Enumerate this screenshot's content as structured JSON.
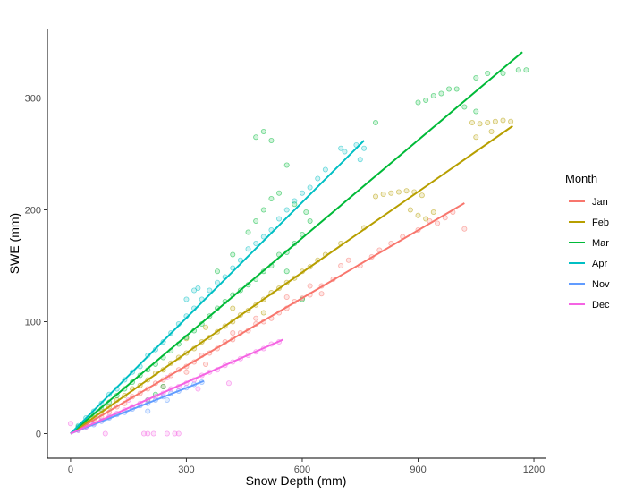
{
  "chart_data": {
    "type": "scatter",
    "xlabel": "Snow Depth (mm)",
    "ylabel": "SWE (mm)",
    "xlim": [
      -60,
      1230
    ],
    "ylim": [
      -22,
      362
    ],
    "x_ticks": [
      0,
      300,
      600,
      900,
      1200
    ],
    "y_ticks": [
      0,
      100,
      200,
      300
    ],
    "grid": false,
    "legend": {
      "title": "Month",
      "position": "right"
    },
    "series": [
      {
        "name": "Jan",
        "color": "#F8766D",
        "fit": [
          [
            0,
            0
          ],
          [
            1020,
            206
          ]
        ],
        "points": [
          [
            20,
            4
          ],
          [
            40,
            8
          ],
          [
            60,
            12
          ],
          [
            80,
            15
          ],
          [
            100,
            19
          ],
          [
            120,
            24
          ],
          [
            140,
            27
          ],
          [
            160,
            33
          ],
          [
            180,
            36
          ],
          [
            200,
            40
          ],
          [
            220,
            45
          ],
          [
            240,
            48
          ],
          [
            260,
            52
          ],
          [
            280,
            57
          ],
          [
            300,
            60
          ],
          [
            320,
            64
          ],
          [
            340,
            70
          ],
          [
            360,
            72
          ],
          [
            380,
            76
          ],
          [
            400,
            82
          ],
          [
            420,
            84
          ],
          [
            440,
            90
          ],
          [
            460,
            92
          ],
          [
            480,
            98
          ],
          [
            500,
            100
          ],
          [
            520,
            103
          ],
          [
            540,
            108
          ],
          [
            560,
            112
          ],
          [
            580,
            118
          ],
          [
            600,
            121
          ],
          [
            620,
            124
          ],
          [
            650,
            132
          ],
          [
            680,
            138
          ],
          [
            700,
            150
          ],
          [
            720,
            155
          ],
          [
            750,
            150
          ],
          [
            780,
            158
          ],
          [
            800,
            164
          ],
          [
            830,
            170
          ],
          [
            860,
            176
          ],
          [
            900,
            182
          ],
          [
            930,
            190
          ],
          [
            950,
            188
          ],
          [
            970,
            193
          ],
          [
            990,
            198
          ],
          [
            1020,
            183
          ],
          [
            240,
            42
          ],
          [
            300,
            55
          ],
          [
            350,
            62
          ],
          [
            420,
            90
          ],
          [
            480,
            103
          ],
          [
            560,
            122
          ],
          [
            620,
            132
          ],
          [
            650,
            125
          ]
        ]
      },
      {
        "name": "Feb",
        "color": "#B79F00",
        "fit": [
          [
            0,
            0
          ],
          [
            1145,
            275
          ]
        ],
        "points": [
          [
            20,
            5
          ],
          [
            40,
            10
          ],
          [
            60,
            14
          ],
          [
            80,
            20
          ],
          [
            100,
            24
          ],
          [
            120,
            30
          ],
          [
            140,
            34
          ],
          [
            160,
            40
          ],
          [
            180,
            43
          ],
          [
            200,
            48
          ],
          [
            220,
            54
          ],
          [
            240,
            57
          ],
          [
            260,
            63
          ],
          [
            280,
            68
          ],
          [
            300,
            72
          ],
          [
            320,
            76
          ],
          [
            340,
            82
          ],
          [
            360,
            86
          ],
          [
            380,
            91
          ],
          [
            400,
            96
          ],
          [
            420,
            100
          ],
          [
            440,
            106
          ],
          [
            460,
            110
          ],
          [
            480,
            115
          ],
          [
            500,
            120
          ],
          [
            520,
            126
          ],
          [
            540,
            130
          ],
          [
            560,
            135
          ],
          [
            580,
            139
          ],
          [
            600,
            145
          ],
          [
            620,
            149
          ],
          [
            640,
            155
          ],
          [
            660,
            160
          ],
          [
            700,
            170
          ],
          [
            760,
            184
          ],
          [
            790,
            212
          ],
          [
            810,
            214
          ],
          [
            830,
            215
          ],
          [
            850,
            216
          ],
          [
            870,
            217
          ],
          [
            890,
            216
          ],
          [
            910,
            213
          ],
          [
            880,
            200
          ],
          [
            900,
            195
          ],
          [
            920,
            192
          ],
          [
            940,
            198
          ],
          [
            1040,
            278
          ],
          [
            1060,
            277
          ],
          [
            1080,
            278
          ],
          [
            1100,
            279
          ],
          [
            1120,
            280
          ],
          [
            1140,
            279
          ],
          [
            1050,
            265
          ],
          [
            1090,
            270
          ],
          [
            300,
            85
          ],
          [
            350,
            95
          ],
          [
            420,
            112
          ],
          [
            500,
            108
          ]
        ]
      },
      {
        "name": "Mar",
        "color": "#00BA38",
        "fit": [
          [
            0,
            0
          ],
          [
            1170,
            341
          ]
        ],
        "points": [
          [
            20,
            6
          ],
          [
            40,
            11
          ],
          [
            60,
            17
          ],
          [
            80,
            22
          ],
          [
            100,
            28
          ],
          [
            120,
            34
          ],
          [
            140,
            40
          ],
          [
            160,
            46
          ],
          [
            180,
            52
          ],
          [
            200,
            57
          ],
          [
            220,
            62
          ],
          [
            240,
            68
          ],
          [
            260,
            74
          ],
          [
            280,
            80
          ],
          [
            300,
            86
          ],
          [
            320,
            92
          ],
          [
            340,
            98
          ],
          [
            360,
            105
          ],
          [
            380,
            112
          ],
          [
            400,
            118
          ],
          [
            420,
            124
          ],
          [
            440,
            128
          ],
          [
            460,
            133
          ],
          [
            480,
            138
          ],
          [
            500,
            145
          ],
          [
            520,
            150
          ],
          [
            540,
            160
          ],
          [
            560,
            162
          ],
          [
            580,
            170
          ],
          [
            600,
            178
          ],
          [
            620,
            190
          ],
          [
            380,
            145
          ],
          [
            420,
            160
          ],
          [
            460,
            180
          ],
          [
            480,
            190
          ],
          [
            500,
            200
          ],
          [
            520,
            210
          ],
          [
            540,
            215
          ],
          [
            580,
            205
          ],
          [
            610,
            198
          ],
          [
            560,
            240
          ],
          [
            480,
            265
          ],
          [
            500,
            270
          ],
          [
            520,
            262
          ],
          [
            790,
            278
          ],
          [
            900,
            296
          ],
          [
            920,
            298
          ],
          [
            940,
            302
          ],
          [
            960,
            304
          ],
          [
            980,
            308
          ],
          [
            1000,
            308
          ],
          [
            1050,
            318
          ],
          [
            1080,
            322
          ],
          [
            1120,
            322
          ],
          [
            1160,
            325
          ],
          [
            1180,
            325
          ],
          [
            1020,
            292
          ],
          [
            1050,
            288
          ],
          [
            200,
            30
          ],
          [
            220,
            35
          ],
          [
            240,
            42
          ],
          [
            560,
            145
          ],
          [
            600,
            120
          ]
        ]
      },
      {
        "name": "Apr",
        "color": "#00BFC4",
        "fit": [
          [
            0,
            0
          ],
          [
            760,
            262
          ]
        ],
        "points": [
          [
            20,
            7
          ],
          [
            40,
            14
          ],
          [
            60,
            20
          ],
          [
            80,
            27
          ],
          [
            100,
            35
          ],
          [
            120,
            40
          ],
          [
            140,
            48
          ],
          [
            160,
            55
          ],
          [
            180,
            60
          ],
          [
            200,
            70
          ],
          [
            220,
            75
          ],
          [
            240,
            82
          ],
          [
            260,
            90
          ],
          [
            280,
            98
          ],
          [
            300,
            105
          ],
          [
            320,
            112
          ],
          [
            340,
            120
          ],
          [
            360,
            128
          ],
          [
            380,
            135
          ],
          [
            400,
            140
          ],
          [
            420,
            148
          ],
          [
            440,
            155
          ],
          [
            460,
            165
          ],
          [
            480,
            170
          ],
          [
            500,
            176
          ],
          [
            520,
            182
          ],
          [
            540,
            192
          ],
          [
            560,
            200
          ],
          [
            580,
            208
          ],
          [
            600,
            215
          ],
          [
            620,
            220
          ],
          [
            640,
            228
          ],
          [
            660,
            236
          ],
          [
            700,
            255
          ],
          [
            710,
            252
          ],
          [
            740,
            258
          ],
          [
            760,
            255
          ],
          [
            750,
            245
          ],
          [
            300,
            120
          ],
          [
            330,
            130
          ],
          [
            320,
            128
          ]
        ]
      },
      {
        "name": "Nov",
        "color": "#619CFF",
        "fit": [
          [
            0,
            0
          ],
          [
            345,
            47
          ]
        ],
        "points": [
          [
            20,
            3
          ],
          [
            40,
            6
          ],
          [
            60,
            8
          ],
          [
            80,
            11
          ],
          [
            100,
            14
          ],
          [
            120,
            17
          ],
          [
            140,
            19
          ],
          [
            160,
            22
          ],
          [
            180,
            25
          ],
          [
            200,
            27
          ],
          [
            220,
            30
          ],
          [
            240,
            33
          ],
          [
            260,
            36
          ],
          [
            280,
            38
          ],
          [
            300,
            41
          ],
          [
            320,
            44
          ],
          [
            340,
            46
          ],
          [
            250,
            30
          ],
          [
            200,
            20
          ]
        ]
      },
      {
        "name": "Dec",
        "color": "#F564E3",
        "fit": [
          [
            0,
            0
          ],
          [
            550,
            84
          ]
        ],
        "points": [
          [
            0,
            9
          ],
          [
            20,
            3
          ],
          [
            40,
            6
          ],
          [
            60,
            9
          ],
          [
            80,
            12
          ],
          [
            100,
            15
          ],
          [
            120,
            18
          ],
          [
            140,
            21
          ],
          [
            160,
            24
          ],
          [
            180,
            27
          ],
          [
            200,
            30
          ],
          [
            220,
            33
          ],
          [
            240,
            36
          ],
          [
            260,
            40
          ],
          [
            280,
            42
          ],
          [
            300,
            45
          ],
          [
            320,
            48
          ],
          [
            340,
            52
          ],
          [
            360,
            55
          ],
          [
            380,
            57
          ],
          [
            400,
            61
          ],
          [
            420,
            64
          ],
          [
            440,
            67
          ],
          [
            460,
            70
          ],
          [
            480,
            73
          ],
          [
            500,
            76
          ],
          [
            520,
            80
          ],
          [
            540,
            82
          ],
          [
            190,
            0
          ],
          [
            200,
            0
          ],
          [
            215,
            0
          ],
          [
            250,
            0
          ],
          [
            270,
            0
          ],
          [
            280,
            0
          ],
          [
            90,
            0
          ],
          [
            150,
            30
          ],
          [
            250,
            50
          ],
          [
            330,
            40
          ],
          [
            410,
            45
          ]
        ]
      }
    ]
  }
}
